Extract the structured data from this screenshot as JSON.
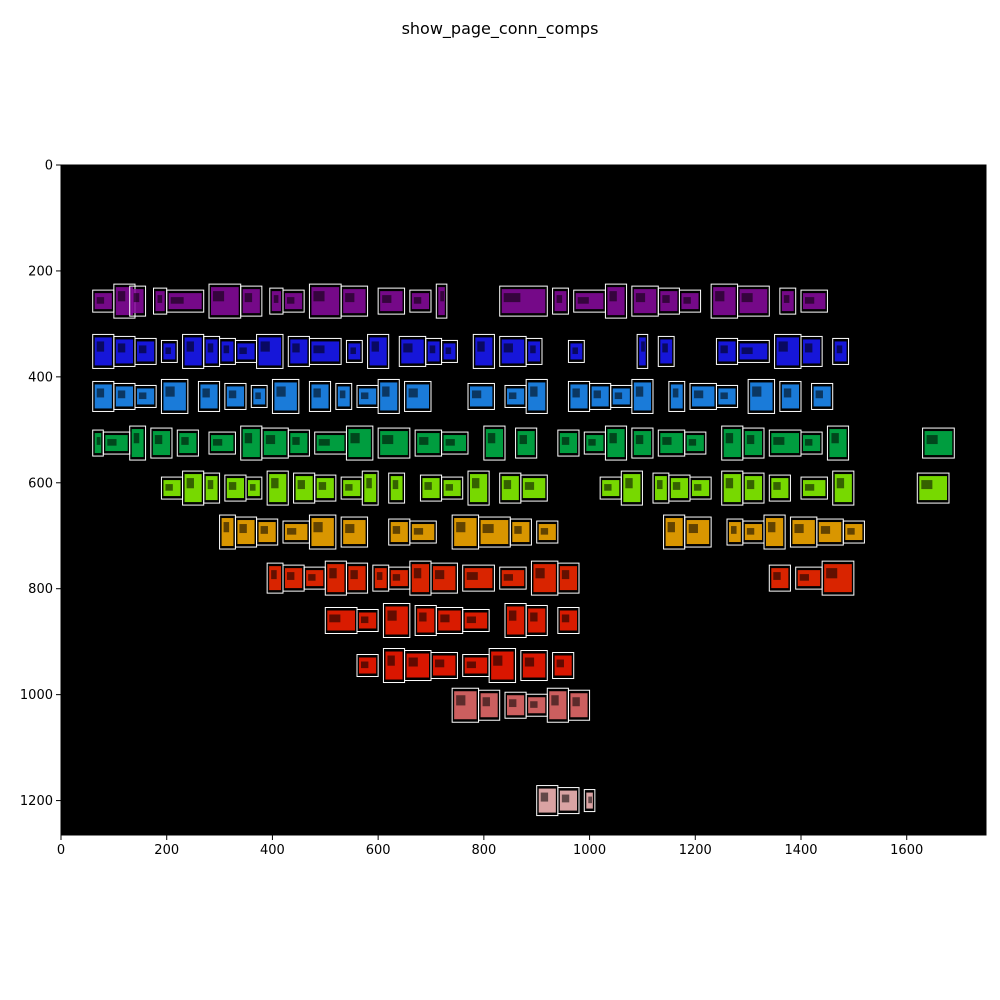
{
  "chart_data": {
    "type": "image",
    "title": "show_page_conn_comps",
    "xlim": [
      0,
      1750
    ],
    "ylim": [
      1265,
      0
    ],
    "xticks": [
      0,
      200,
      400,
      600,
      800,
      1000,
      1200,
      1400,
      1600
    ],
    "yticks": [
      0,
      200,
      400,
      600,
      800,
      1000,
      1200
    ],
    "image_background": "#000000",
    "box_color": "#ffffff",
    "line_colormap": [
      "#6a006a",
      "#9400c8",
      "#1a1aff",
      "#1e90ff",
      "#00c050",
      "#40e040",
      "#a0ff00",
      "#ffd000",
      "#ffa000",
      "#ff3000",
      "#e01000",
      "#f08080",
      "#ffc0c0"
    ],
    "rows": [
      {
        "y": 257,
        "color": "#8a0aa0",
        "boxes": [
          [
            60,
            100
          ],
          [
            100,
            140
          ],
          [
            130,
            160
          ],
          [
            175,
            200
          ],
          [
            200,
            270
          ],
          [
            280,
            340
          ],
          [
            340,
            380
          ],
          [
            395,
            420
          ],
          [
            420,
            460
          ],
          [
            470,
            530
          ],
          [
            530,
            580
          ],
          [
            600,
            650
          ],
          [
            660,
            700
          ],
          [
            710,
            730
          ],
          [
            830,
            920
          ],
          [
            930,
            960
          ],
          [
            970,
            1030
          ],
          [
            1030,
            1070
          ],
          [
            1080,
            1130
          ],
          [
            1130,
            1170
          ],
          [
            1170,
            1210
          ],
          [
            1230,
            1280
          ],
          [
            1280,
            1340
          ],
          [
            1360,
            1390
          ],
          [
            1400,
            1450
          ]
        ]
      },
      {
        "y": 352,
        "color": "#1a1aff",
        "boxes": [
          [
            60,
            100
          ],
          [
            100,
            140
          ],
          [
            140,
            180
          ],
          [
            190,
            220
          ],
          [
            230,
            270
          ],
          [
            270,
            300
          ],
          [
            300,
            330
          ],
          [
            330,
            370
          ],
          [
            370,
            420
          ],
          [
            430,
            470
          ],
          [
            470,
            530
          ],
          [
            540,
            570
          ],
          [
            580,
            620
          ],
          [
            640,
            690
          ],
          [
            690,
            720
          ],
          [
            720,
            750
          ],
          [
            780,
            820
          ],
          [
            830,
            880
          ],
          [
            880,
            910
          ],
          [
            960,
            990
          ],
          [
            1090,
            1110
          ],
          [
            1130,
            1160
          ],
          [
            1240,
            1280
          ],
          [
            1280,
            1340
          ],
          [
            1350,
            1400
          ],
          [
            1400,
            1440
          ],
          [
            1460,
            1490
          ]
        ]
      },
      {
        "y": 437,
        "color": "#1e90ff",
        "boxes": [
          [
            60,
            100
          ],
          [
            100,
            140
          ],
          [
            140,
            180
          ],
          [
            190,
            240
          ],
          [
            260,
            300
          ],
          [
            310,
            350
          ],
          [
            360,
            390
          ],
          [
            400,
            450
          ],
          [
            470,
            510
          ],
          [
            520,
            550
          ],
          [
            560,
            600
          ],
          [
            600,
            640
          ],
          [
            650,
            700
          ],
          [
            770,
            820
          ],
          [
            840,
            880
          ],
          [
            880,
            920
          ],
          [
            960,
            1000
          ],
          [
            1000,
            1040
          ],
          [
            1040,
            1080
          ],
          [
            1080,
            1120
          ],
          [
            1150,
            1180
          ],
          [
            1190,
            1240
          ],
          [
            1240,
            1280
          ],
          [
            1300,
            1350
          ],
          [
            1360,
            1400
          ],
          [
            1420,
            1460
          ]
        ]
      },
      {
        "y": 525,
        "color": "#00b84a",
        "boxes": [
          [
            60,
            80
          ],
          [
            80,
            130
          ],
          [
            130,
            160
          ],
          [
            170,
            210
          ],
          [
            220,
            260
          ],
          [
            280,
            330
          ],
          [
            340,
            380
          ],
          [
            380,
            430
          ],
          [
            430,
            470
          ],
          [
            480,
            540
          ],
          [
            540,
            590
          ],
          [
            600,
            660
          ],
          [
            670,
            720
          ],
          [
            720,
            770
          ],
          [
            800,
            840
          ],
          [
            860,
            900
          ],
          [
            940,
            980
          ],
          [
            990,
            1030
          ],
          [
            1030,
            1070
          ],
          [
            1080,
            1120
          ],
          [
            1130,
            1180
          ],
          [
            1180,
            1220
          ],
          [
            1250,
            1290
          ],
          [
            1290,
            1330
          ],
          [
            1340,
            1400
          ],
          [
            1400,
            1440
          ],
          [
            1450,
            1490
          ],
          [
            1630,
            1690
          ]
        ]
      },
      {
        "y": 610,
        "color": "#8cff00",
        "boxes": [
          [
            190,
            230
          ],
          [
            230,
            270
          ],
          [
            270,
            300
          ],
          [
            310,
            350
          ],
          [
            350,
            380
          ],
          [
            390,
            430
          ],
          [
            440,
            480
          ],
          [
            480,
            520
          ],
          [
            530,
            570
          ],
          [
            570,
            600
          ],
          [
            620,
            650
          ],
          [
            680,
            720
          ],
          [
            720,
            760
          ],
          [
            770,
            810
          ],
          [
            830,
            870
          ],
          [
            870,
            920
          ],
          [
            1020,
            1060
          ],
          [
            1060,
            1100
          ],
          [
            1120,
            1150
          ],
          [
            1150,
            1190
          ],
          [
            1190,
            1230
          ],
          [
            1250,
            1290
          ],
          [
            1290,
            1330
          ],
          [
            1340,
            1380
          ],
          [
            1400,
            1450
          ],
          [
            1460,
            1500
          ],
          [
            1620,
            1680
          ]
        ]
      },
      {
        "y": 693,
        "color": "#ffb000",
        "boxes": [
          [
            300,
            330
          ],
          [
            330,
            370
          ],
          [
            370,
            410
          ],
          [
            420,
            470
          ],
          [
            470,
            520
          ],
          [
            530,
            580
          ],
          [
            620,
            660
          ],
          [
            660,
            710
          ],
          [
            740,
            790
          ],
          [
            790,
            850
          ],
          [
            850,
            890
          ],
          [
            900,
            940
          ],
          [
            1140,
            1180
          ],
          [
            1180,
            1230
          ],
          [
            1260,
            1290
          ],
          [
            1290,
            1330
          ],
          [
            1330,
            1370
          ],
          [
            1380,
            1430
          ],
          [
            1430,
            1480
          ],
          [
            1480,
            1520
          ]
        ]
      },
      {
        "y": 780,
        "color": "#ff2a00",
        "boxes": [
          [
            390,
            420
          ],
          [
            420,
            460
          ],
          [
            460,
            500
          ],
          [
            500,
            540
          ],
          [
            540,
            580
          ],
          [
            590,
            620
          ],
          [
            620,
            660
          ],
          [
            660,
            700
          ],
          [
            700,
            750
          ],
          [
            760,
            820
          ],
          [
            830,
            880
          ],
          [
            890,
            940
          ],
          [
            940,
            980
          ],
          [
            1340,
            1380
          ],
          [
            1390,
            1440
          ],
          [
            1440,
            1500
          ]
        ]
      },
      {
        "y": 860,
        "color": "#ff2000",
        "boxes": [
          [
            500,
            560
          ],
          [
            560,
            600
          ],
          [
            610,
            660
          ],
          [
            670,
            710
          ],
          [
            710,
            760
          ],
          [
            760,
            810
          ],
          [
            840,
            880
          ],
          [
            880,
            920
          ],
          [
            940,
            980
          ]
        ]
      },
      {
        "y": 945,
        "color": "#ff1a00",
        "boxes": [
          [
            560,
            600
          ],
          [
            610,
            650
          ],
          [
            650,
            700
          ],
          [
            700,
            750
          ],
          [
            760,
            810
          ],
          [
            810,
            860
          ],
          [
            870,
            920
          ],
          [
            930,
            970
          ]
        ]
      },
      {
        "y": 1020,
        "color": "#f07070",
        "boxes": [
          [
            740,
            790
          ],
          [
            790,
            830
          ],
          [
            840,
            880
          ],
          [
            880,
            920
          ],
          [
            920,
            960
          ],
          [
            960,
            1000
          ]
        ]
      },
      {
        "y": 1200,
        "color": "#ffc0c0",
        "boxes": [
          [
            900,
            940
          ],
          [
            940,
            980
          ],
          [
            990,
            1010
          ]
        ]
      }
    ]
  }
}
